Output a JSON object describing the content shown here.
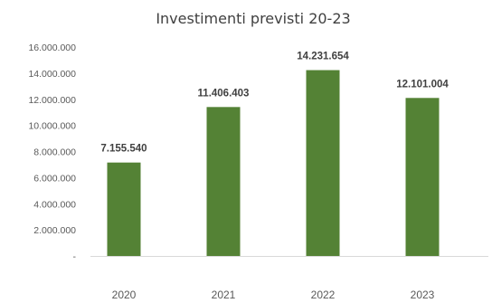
{
  "chart_data": {
    "type": "bar",
    "title": "Investimenti previsti 20-23",
    "xlabel": "",
    "ylabel": "",
    "categories": [
      "2020",
      "2021",
      "2022",
      "2023"
    ],
    "values": [
      7155540,
      11406403,
      14231654,
      12101004
    ],
    "data_labels": [
      "7.155.540",
      "11.406.403",
      "14.231.654",
      "12.101.004"
    ],
    "ylim": [
      0,
      16000000
    ],
    "yticks": [
      0,
      2000000,
      4000000,
      6000000,
      8000000,
      10000000,
      12000000,
      14000000,
      16000000
    ],
    "ytick_labels": [
      "-",
      "2.000.000",
      "4.000.000",
      "6.000.000",
      "8.000.000",
      "10.000.000",
      "12.000.000",
      "14.000.000",
      "16.000.000"
    ],
    "bar_color": "#548235",
    "grid": false,
    "legend": "none"
  }
}
